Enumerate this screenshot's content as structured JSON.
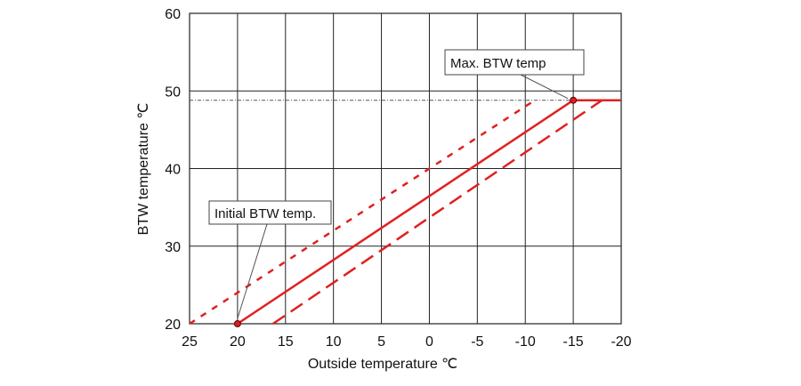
{
  "chart_data": {
    "type": "line",
    "xlabel": "Outside temperature ℃",
    "ylabel": "BTW temperature ℃",
    "xlim": [
      25,
      -20
    ],
    "ylim": [
      20,
      60
    ],
    "x_ticks": [
      25,
      20,
      15,
      10,
      5,
      0,
      -5,
      -10,
      -15,
      -20
    ],
    "y_ticks": [
      20,
      30,
      40,
      50,
      60
    ],
    "grid": true,
    "series": [
      {
        "style": "dotted",
        "color": "#e02020",
        "points": [
          [
            25,
            20
          ],
          [
            -11,
            48.8
          ]
        ]
      },
      {
        "style": "solid",
        "color": "#e02020",
        "points": [
          [
            20,
            20
          ],
          [
            -15,
            48.8
          ],
          [
            -20,
            48.8
          ]
        ]
      },
      {
        "style": "dashed",
        "color": "#e02020",
        "points": [
          [
            16.3,
            20
          ],
          [
            -18,
            48.8
          ]
        ]
      }
    ],
    "reference_line": {
      "y": 48.8,
      "style": "dash-dot",
      "color": "#555555"
    },
    "annotations": [
      {
        "text": "Max. BTW temp",
        "point": [
          -15,
          48.8
        ]
      },
      {
        "text": "Initial BTW temp.",
        "point": [
          20,
          20
        ]
      }
    ]
  }
}
